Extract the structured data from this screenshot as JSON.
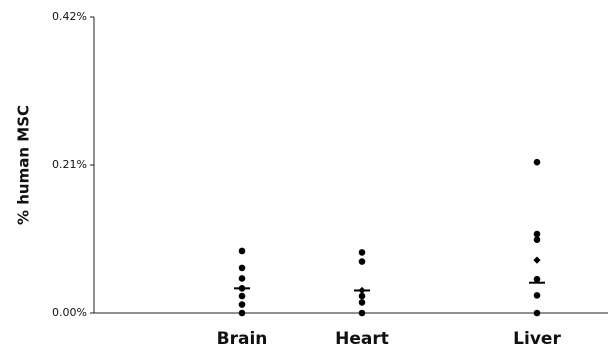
{
  "chart_data": {
    "type": "scatter",
    "title": "",
    "xlabel": "",
    "ylabel": "% human MSC",
    "ylim": [
      0,
      0.42
    ],
    "yticks": [
      {
        "value": 0,
        "label": "0.00%"
      },
      {
        "value": 0.21,
        "label": "0.21%"
      },
      {
        "value": 0.42,
        "label": "0.42%"
      }
    ],
    "categories": [
      "Brain",
      "Heart",
      "Liver"
    ],
    "series": [
      {
        "category": "Brain",
        "points": [
          0.088,
          0.064,
          0.049,
          0.035,
          0.024,
          0.012,
          0.0
        ],
        "median": 0.035,
        "marker": "circle"
      },
      {
        "category": "Heart",
        "points": [
          0.086,
          0.073,
          0.024,
          0.015,
          0.0
        ],
        "diamond_points": [
          0.032
        ],
        "median": 0.032,
        "marker": "circle"
      },
      {
        "category": "Liver",
        "points": [
          0.214,
          0.112,
          0.104,
          0.048,
          0.025,
          0.0
        ],
        "diamond_points": [
          0.075
        ],
        "median": 0.043,
        "marker": "circle"
      }
    ],
    "grid": false,
    "legend": "none",
    "marker_color": "#000000"
  }
}
